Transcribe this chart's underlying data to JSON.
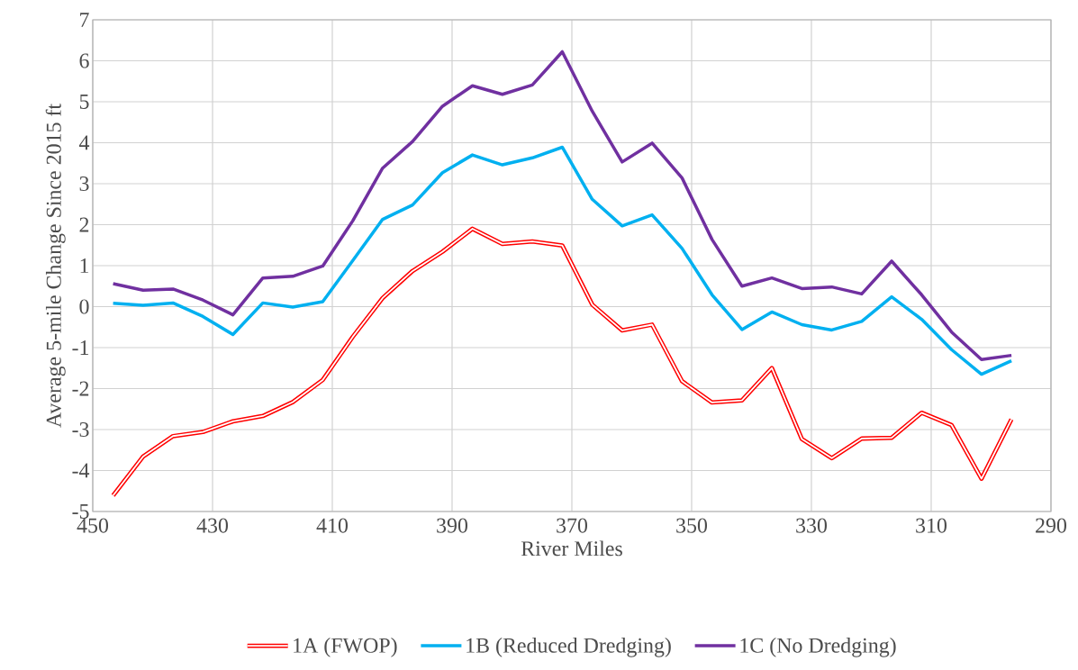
{
  "chart_data": {
    "type": "line",
    "xlabel": "River Miles",
    "ylabel": "Average 5-mile Change Since 2015 ft",
    "x": [
      446.6,
      441.6,
      436.6,
      431.6,
      426.6,
      421.6,
      416.6,
      411.6,
      406.6,
      401.6,
      396.6,
      391.6,
      386.6,
      381.6,
      376.6,
      371.6,
      366.6,
      361.6,
      356.6,
      351.6,
      346.6,
      341.6,
      336.6,
      331.6,
      326.6,
      321.6,
      316.6,
      311.6,
      306.6,
      301.6,
      296.6
    ],
    "series": [
      {
        "name": "1A (FWOP)",
        "color": "#ff0000",
        "values": [
          -4.61,
          -3.66,
          -3.16,
          -3.06,
          -2.8,
          -2.67,
          -2.33,
          -1.79,
          -0.74,
          0.21,
          0.87,
          1.34,
          1.9,
          1.53,
          1.59,
          1.49,
          0.05,
          -0.58,
          -0.44,
          -1.82,
          -2.34,
          -2.29,
          -1.5,
          -3.23,
          -3.7,
          -3.22,
          -3.2,
          -2.59,
          -2.89,
          -4.2,
          -2.75
        ]
      },
      {
        "name": "1B (Reduced Dredging)",
        "color": "#00b0f0",
        "values": [
          0.08,
          0.03,
          0.09,
          -0.24,
          -0.68,
          0.09,
          -0.01,
          0.12,
          1.12,
          2.13,
          2.48,
          3.27,
          3.7,
          3.46,
          3.63,
          3.89,
          2.62,
          1.97,
          2.24,
          1.42,
          0.29,
          -0.56,
          -0.13,
          -0.44,
          -0.57,
          -0.36,
          0.24,
          -0.31,
          -1.05,
          -1.65,
          -1.32
        ]
      },
      {
        "name": "1C (No Dredging)",
        "color": "#7030a0",
        "values": [
          0.56,
          0.4,
          0.43,
          0.16,
          -0.2,
          0.7,
          0.74,
          0.99,
          2.09,
          3.38,
          4.03,
          4.89,
          5.39,
          5.18,
          5.41,
          6.22,
          4.77,
          3.53,
          3.99,
          3.14,
          1.64,
          0.5,
          0.7,
          0.44,
          0.48,
          0.31,
          1.11,
          0.29,
          -0.62,
          -1.29,
          -1.19
        ]
      }
    ],
    "xlim": [
      450,
      290
    ],
    "ylim": [
      -5,
      7
    ],
    "xticks": [
      450,
      430,
      410,
      390,
      370,
      350,
      330,
      310,
      290
    ],
    "yticks": [
      -5,
      -4,
      -3,
      -2,
      -1,
      0,
      1,
      2,
      3,
      4,
      5,
      6,
      7
    ],
    "grid": true,
    "legend": "bottom",
    "marker": "none",
    "line_style": "solid"
  }
}
